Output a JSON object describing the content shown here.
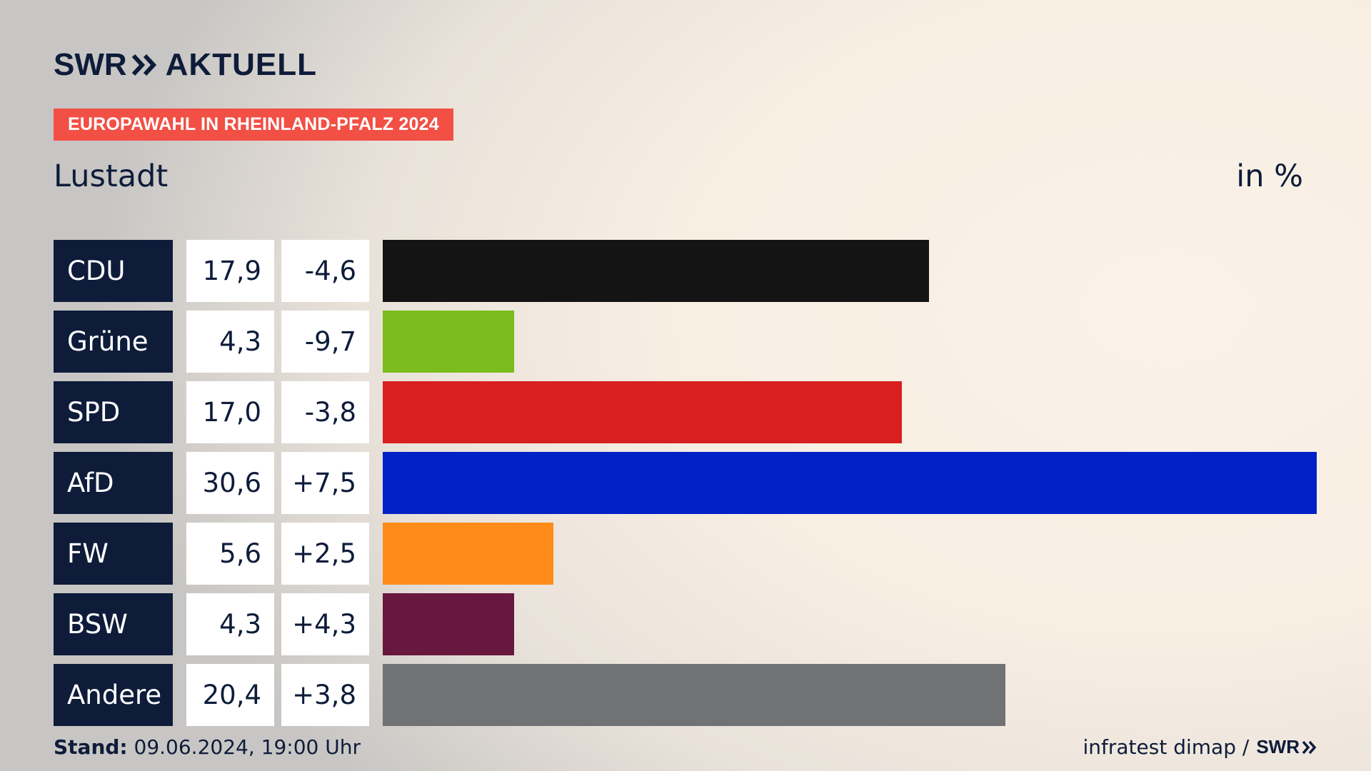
{
  "brand": {
    "swr": "SWR",
    "aktuell": "AKTUELL"
  },
  "tag": "EUROPAWAHL IN RHEINLAND-PFALZ 2024",
  "region": "Lustadt",
  "unit": "in %",
  "footer": {
    "stand_label": "Stand:",
    "stand_value": " 09.06.2024, 19:00 Uhr",
    "source": "infratest dimap /",
    "source_brand": "SWR"
  },
  "chart_data": {
    "type": "bar",
    "orientation": "horizontal",
    "categories": [
      "CDU",
      "Grüne",
      "SPD",
      "AfD",
      "FW",
      "BSW",
      "Andere"
    ],
    "values": [
      17.9,
      4.3,
      17.0,
      30.6,
      5.6,
      4.3,
      20.4
    ],
    "value_labels": [
      "17,9",
      "4,3",
      "17,0",
      "30,6",
      "5,6",
      "4,3",
      "20,4"
    ],
    "changes": [
      -4.6,
      -9.7,
      -3.8,
      7.5,
      2.5,
      4.3,
      3.8
    ],
    "change_labels": [
      "-4,6",
      "-9,7",
      "-3,8",
      "+7,5",
      "+2,5",
      "+4,3",
      "+3,8"
    ],
    "colors": [
      "#141414",
      "#7bbd1c",
      "#d82020",
      "#0021c6",
      "#ff8c1a",
      "#68173e",
      "#717274"
    ],
    "xlim": [
      0,
      30.6
    ]
  },
  "colors": {
    "navy": "#0e1c3a",
    "tag_red": "#f24f45",
    "white": "#ffffff"
  }
}
